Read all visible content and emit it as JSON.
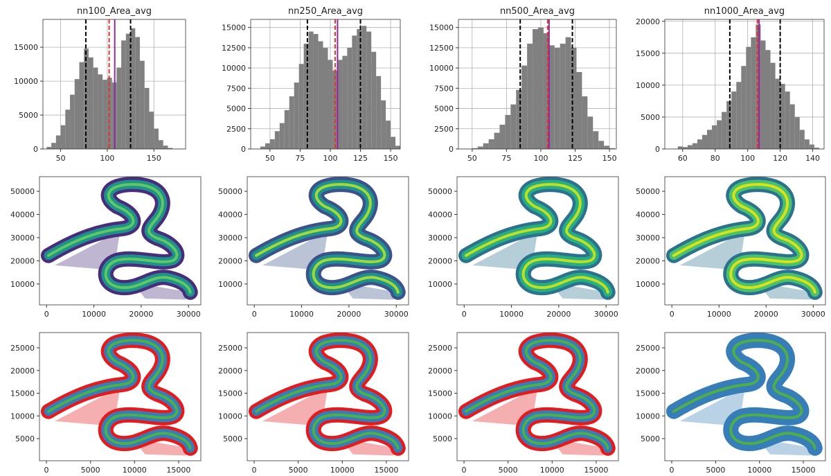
{
  "chart_data": [
    {
      "type": "histogram",
      "title": "nn100_Area_avg",
      "color": "#808080",
      "grid": true,
      "bins": [
        35,
        40,
        45,
        50,
        55,
        60,
        65,
        70,
        75,
        80,
        85,
        90,
        95,
        100,
        105,
        110,
        115,
        120,
        125,
        130,
        135,
        140,
        145,
        150,
        155,
        160,
        165,
        170
      ],
      "counts": [
        300,
        900,
        2000,
        3500,
        5800,
        8000,
        10300,
        12800,
        14800,
        13500,
        12000,
        11000,
        10200,
        10500,
        9800,
        12000,
        16000,
        17000,
        17800,
        16500,
        13000,
        9000,
        5500,
        3000,
        1300,
        500,
        150
      ],
      "vlines": [
        {
          "value": 77,
          "color": "#000000",
          "dashed": true
        },
        {
          "value": 102,
          "color": "#e8332a",
          "dashed": true
        },
        {
          "value": 108,
          "color": "#8e2a9e",
          "dashed": false
        },
        {
          "value": 125,
          "color": "#000000",
          "dashed": true
        }
      ],
      "xlim": [
        31,
        184
      ],
      "xticks": [
        50,
        100,
        150
      ],
      "ylim": [
        0,
        19100
      ],
      "yticks": [
        0,
        5000,
        10000,
        15000
      ]
    },
    {
      "type": "histogram",
      "title": "nn250_Area_avg",
      "color": "#808080",
      "grid": true,
      "bins": [
        42,
        46,
        50,
        54,
        58,
        62,
        66,
        70,
        74,
        78,
        82,
        86,
        90,
        94,
        98,
        102,
        106,
        110,
        114,
        118,
        122,
        126,
        130,
        134,
        138,
        142,
        146,
        150,
        154,
        158
      ],
      "counts": [
        300,
        700,
        1200,
        2200,
        3200,
        4800,
        6500,
        8200,
        10500,
        13000,
        14500,
        14200,
        13300,
        12500,
        11000,
        9700,
        11000,
        11500,
        12500,
        14000,
        14800,
        15200,
        14500,
        12000,
        9000,
        6000,
        3500,
        1500,
        400
      ],
      "vlines": [
        {
          "value": 81,
          "color": "#000000",
          "dashed": true
        },
        {
          "value": 104,
          "color": "#e8332a",
          "dashed": true
        },
        {
          "value": 106,
          "color": "#8e2a9e",
          "dashed": false
        },
        {
          "value": 125,
          "color": "#000000",
          "dashed": true
        }
      ],
      "xlim": [
        34,
        158
      ],
      "xticks": [
        50,
        75,
        100,
        125,
        150
      ],
      "ylim": [
        0,
        16000
      ],
      "yticks": [
        0,
        2500,
        5000,
        7500,
        10000,
        12500,
        15000
      ]
    },
    {
      "type": "histogram",
      "title": "nn500_Area_avg",
      "color": "#808080",
      "grid": true,
      "bins": [
        50,
        54,
        58,
        62,
        66,
        70,
        74,
        78,
        82,
        86,
        90,
        94,
        98,
        102,
        106,
        110,
        114,
        118,
        122,
        126,
        130,
        134,
        138,
        142,
        146,
        150,
        154
      ],
      "counts": [
        100,
        300,
        700,
        1200,
        2000,
        3000,
        4200,
        5500,
        7300,
        10300,
        13000,
        14800,
        15000,
        14300,
        12800,
        12500,
        13000,
        13800,
        12500,
        9500,
        6500,
        4000,
        2200,
        1000,
        400,
        100
      ],
      "vlines": [
        {
          "value": 85,
          "color": "#000000",
          "dashed": true
        },
        {
          "value": 105,
          "color": "#e8332a",
          "dashed": true
        },
        {
          "value": 106,
          "color": "#8e2a9e",
          "dashed": false
        },
        {
          "value": 123,
          "color": "#000000",
          "dashed": true
        }
      ],
      "xlim": [
        40,
        155
      ],
      "xticks": [
        50,
        75,
        100,
        125,
        150
      ],
      "ylim": [
        0,
        16000
      ],
      "yticks": [
        0,
        2500,
        5000,
        7500,
        10000,
        12500,
        15000
      ]
    },
    {
      "type": "histogram",
      "title": "nn1000_Area_avg",
      "color": "#808080",
      "grid": true,
      "bins": [
        57,
        60,
        63,
        66,
        69,
        72,
        75,
        78,
        81,
        84,
        87,
        90,
        93,
        96,
        99,
        102,
        105,
        108,
        111,
        114,
        117,
        120,
        123,
        126,
        129,
        132,
        135,
        138,
        141,
        144
      ],
      "counts": [
        400,
        300,
        600,
        900,
        1500,
        2200,
        3000,
        3700,
        4500,
        5800,
        7500,
        9000,
        10500,
        13000,
        16000,
        17500,
        19500,
        17000,
        15500,
        13500,
        11000,
        10200,
        9000,
        7000,
        5000,
        3000,
        1500,
        700,
        200
      ],
      "vlines": [
        {
          "value": 89,
          "color": "#000000",
          "dashed": true
        },
        {
          "value": 106,
          "color": "#e8332a",
          "dashed": true
        },
        {
          "value": 107,
          "color": "#8e2a9e",
          "dashed": false
        },
        {
          "value": 120,
          "color": "#000000",
          "dashed": true
        }
      ],
      "xlim": [
        49,
        147
      ],
      "xticks": [
        60,
        80,
        100,
        120,
        140
      ],
      "ylim": [
        0,
        20300
      ],
      "yticks": [
        0,
        5000,
        10000,
        15000,
        20000
      ]
    },
    {
      "type": "scatter",
      "colors": [
        "#472d7b",
        "#21918c",
        "#5ec962"
      ],
      "xlim": [
        -1500,
        32600
      ],
      "xticks": [
        0,
        10000,
        20000,
        30000
      ],
      "ylim": [
        1000,
        56300
      ],
      "yticks": [
        10000,
        20000,
        30000,
        40000,
        50000
      ]
    },
    {
      "type": "scatter",
      "colors": [
        "#3b528b",
        "#21918c",
        "#9fda3a"
      ],
      "xlim": [
        -1500,
        32600
      ],
      "xticks": [
        0,
        10000,
        20000,
        30000
      ],
      "ylim": [
        1000,
        56300
      ],
      "yticks": [
        10000,
        20000,
        30000,
        40000,
        50000
      ]
    },
    {
      "type": "scatter",
      "colors": [
        "#2c728e",
        "#28ae80",
        "#bddf26"
      ],
      "xlim": [
        -1500,
        32600
      ],
      "xticks": [
        0,
        10000,
        20000,
        30000
      ],
      "ylim": [
        1000,
        56300
      ],
      "yticks": [
        10000,
        20000,
        30000,
        40000,
        50000
      ]
    },
    {
      "type": "scatter",
      "colors": [
        "#2c728e",
        "#4ac16d",
        "#d8e219"
      ],
      "xlim": [
        -1500,
        32600
      ],
      "xticks": [
        0,
        10000,
        20000,
        30000
      ],
      "ylim": [
        1000,
        56300
      ],
      "yticks": [
        10000,
        20000,
        30000,
        40000,
        50000
      ]
    },
    {
      "type": "scatter",
      "colors": [
        "#e41a1c",
        "#377eb8",
        "#4daf4a"
      ],
      "xlim": [
        -790,
        17520
      ],
      "xticks": [
        0,
        5000,
        10000,
        15000
      ],
      "ylim": [
        120,
        28360
      ],
      "yticks": [
        5000,
        10000,
        15000,
        20000,
        25000
      ]
    },
    {
      "type": "scatter",
      "colors": [
        "#e41a1c",
        "#377eb8",
        "#4daf4a"
      ],
      "xlim": [
        -790,
        17520
      ],
      "xticks": [
        0,
        5000,
        10000,
        15000
      ],
      "ylim": [
        120,
        28360
      ],
      "yticks": [
        5000,
        10000,
        15000,
        20000,
        25000
      ]
    },
    {
      "type": "scatter",
      "colors": [
        "#e41a1c",
        "#377eb8",
        "#4daf4a"
      ],
      "xlim": [
        -790,
        17520
      ],
      "xticks": [
        0,
        5000,
        10000,
        15000
      ],
      "ylim": [
        120,
        28360
      ],
      "yticks": [
        5000,
        10000,
        15000,
        20000,
        25000
      ]
    },
    {
      "type": "scatter",
      "colors": [
        "#377eb8",
        "#377eb8",
        "#4daf4a"
      ],
      "xlim": [
        -790,
        17520
      ],
      "xticks": [
        0,
        5000,
        10000,
        15000
      ],
      "ylim": [
        120,
        28360
      ],
      "yticks": [
        5000,
        10000,
        15000,
        20000,
        25000
      ]
    }
  ]
}
